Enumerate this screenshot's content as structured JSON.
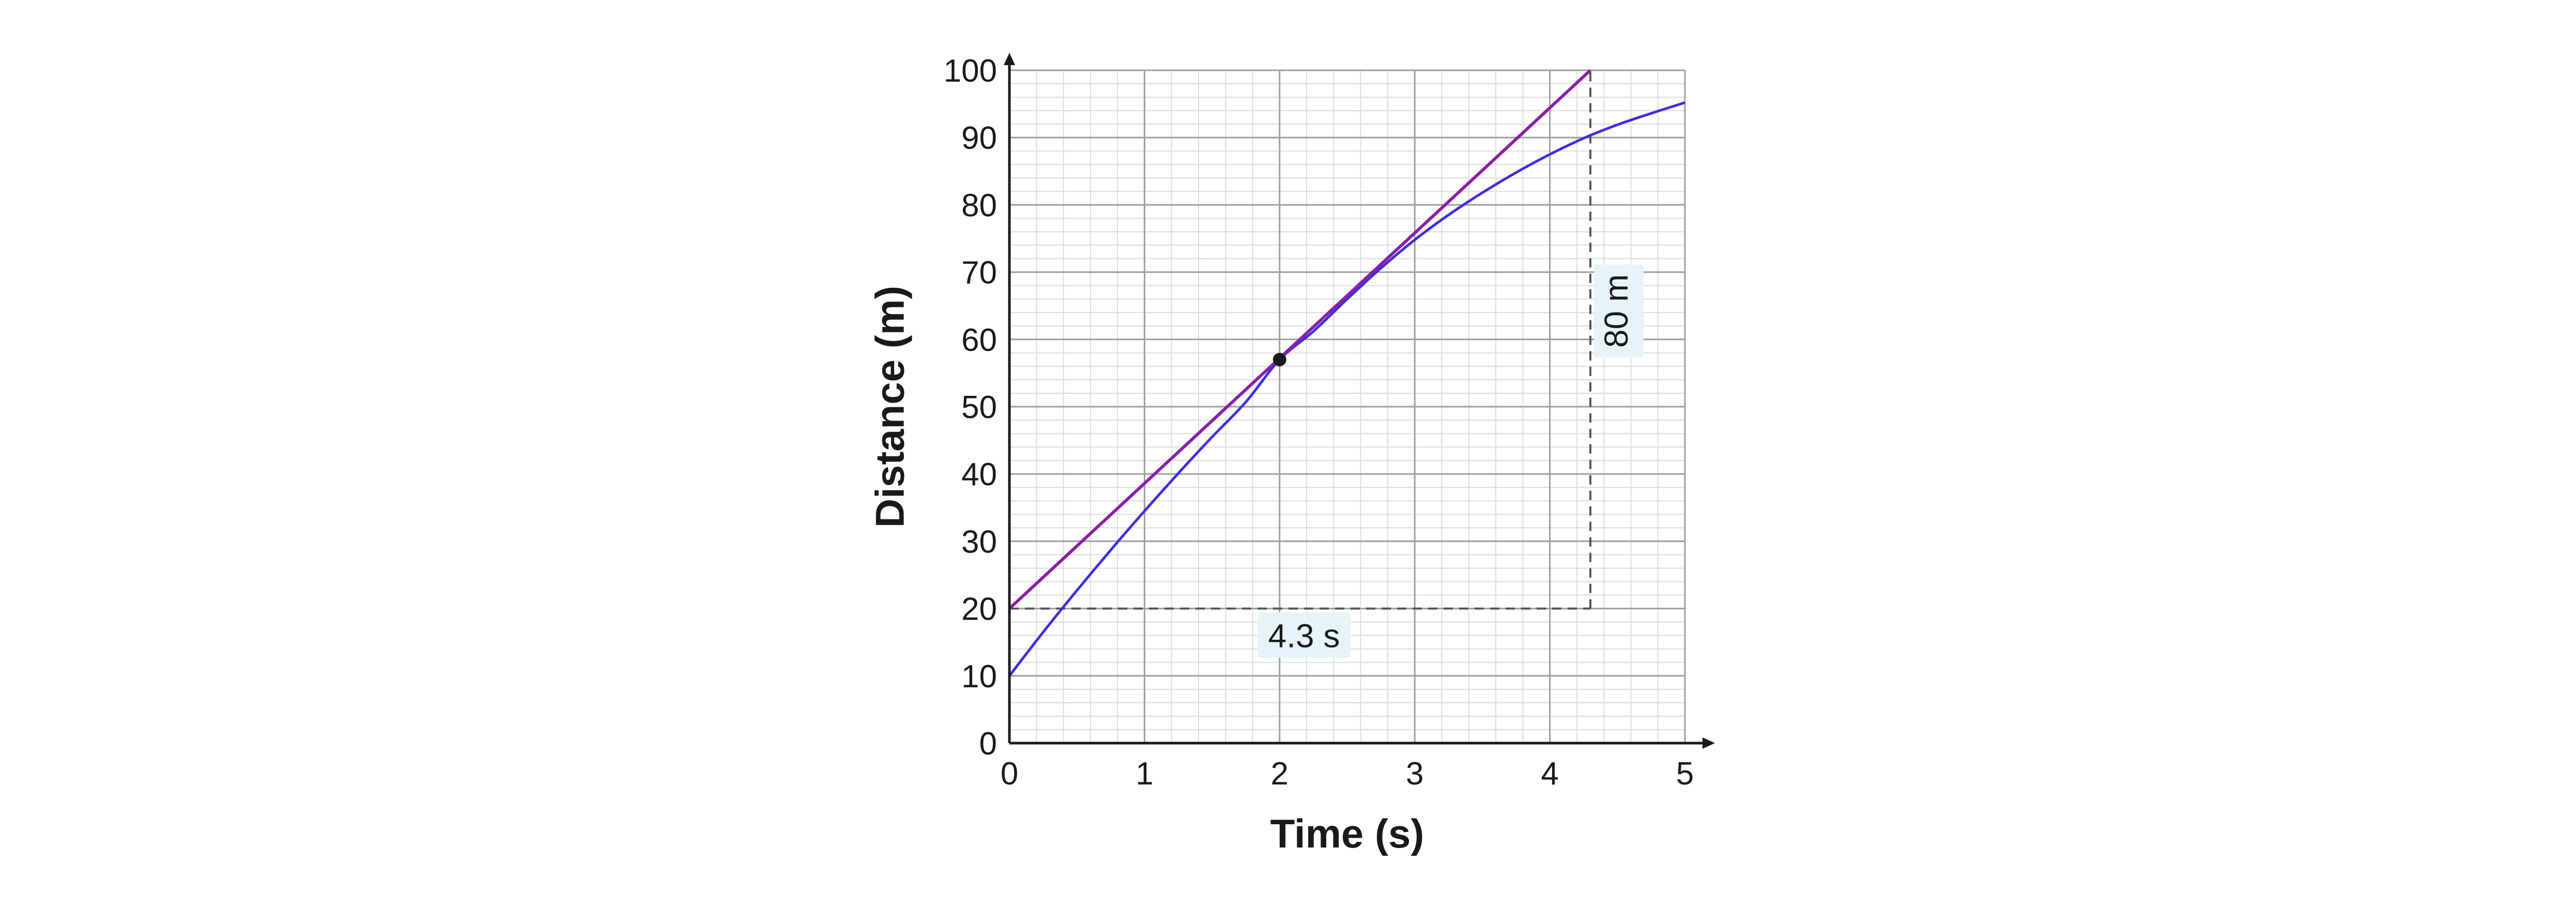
{
  "chart_data": {
    "type": "line",
    "xlabel": "Time (s)",
    "ylabel": "Distance (m)",
    "xlim": [
      0,
      5
    ],
    "ylim": [
      0,
      100
    ],
    "x_ticks": [
      0,
      1,
      2,
      3,
      4,
      5
    ],
    "y_ticks": [
      0,
      10,
      20,
      30,
      40,
      50,
      60,
      70,
      80,
      90,
      100
    ],
    "x_tick_labels": [
      "0",
      "1",
      "2",
      "3",
      "4",
      "5"
    ],
    "y_tick_labels": [
      "0",
      "10",
      "20",
      "30",
      "40",
      "50",
      "60",
      "70",
      "80",
      "90",
      "100"
    ],
    "grid": true,
    "minor_grid_per_major": 5,
    "series": [
      {
        "role": "curve",
        "color": "#3a2fe0",
        "x": [
          0,
          0.25,
          0.5,
          0.75,
          1,
          1.25,
          1.5,
          1.75,
          2,
          2.25,
          2.5,
          2.75,
          3,
          3.25,
          3.5,
          3.75,
          4,
          4.25,
          4.5,
          4.75,
          5
        ],
        "y": [
          10,
          16.5,
          22.7,
          28.7,
          34.5,
          40.1,
          45.5,
          50.7,
          57,
          61.2,
          66,
          70.6,
          74.8,
          78.5,
          81.8,
          84.8,
          87.5,
          89.9,
          91.9,
          93.6,
          95.2
        ]
      },
      {
        "role": "tangent",
        "color": "#8a1fa8",
        "x": [
          0,
          4.3
        ],
        "y": [
          20,
          100
        ]
      }
    ],
    "tangent_point": {
      "x": 2,
      "y": 57
    },
    "guides": {
      "horizontal": {
        "x": [
          0,
          4.3
        ],
        "y": 20
      },
      "vertical": {
        "x": 4.3,
        "y": [
          20,
          100
        ]
      }
    },
    "annotations": {
      "run_label": "4.3 s",
      "rise_label": "80 m"
    },
    "colors": {
      "axis": "#1a1a1a",
      "major_grid": "#9e9e9e",
      "minor_grid": "#dcdcdc",
      "label_box": "#e6f4f8",
      "point": "#1a1a1a",
      "guide": "#555555"
    }
  }
}
